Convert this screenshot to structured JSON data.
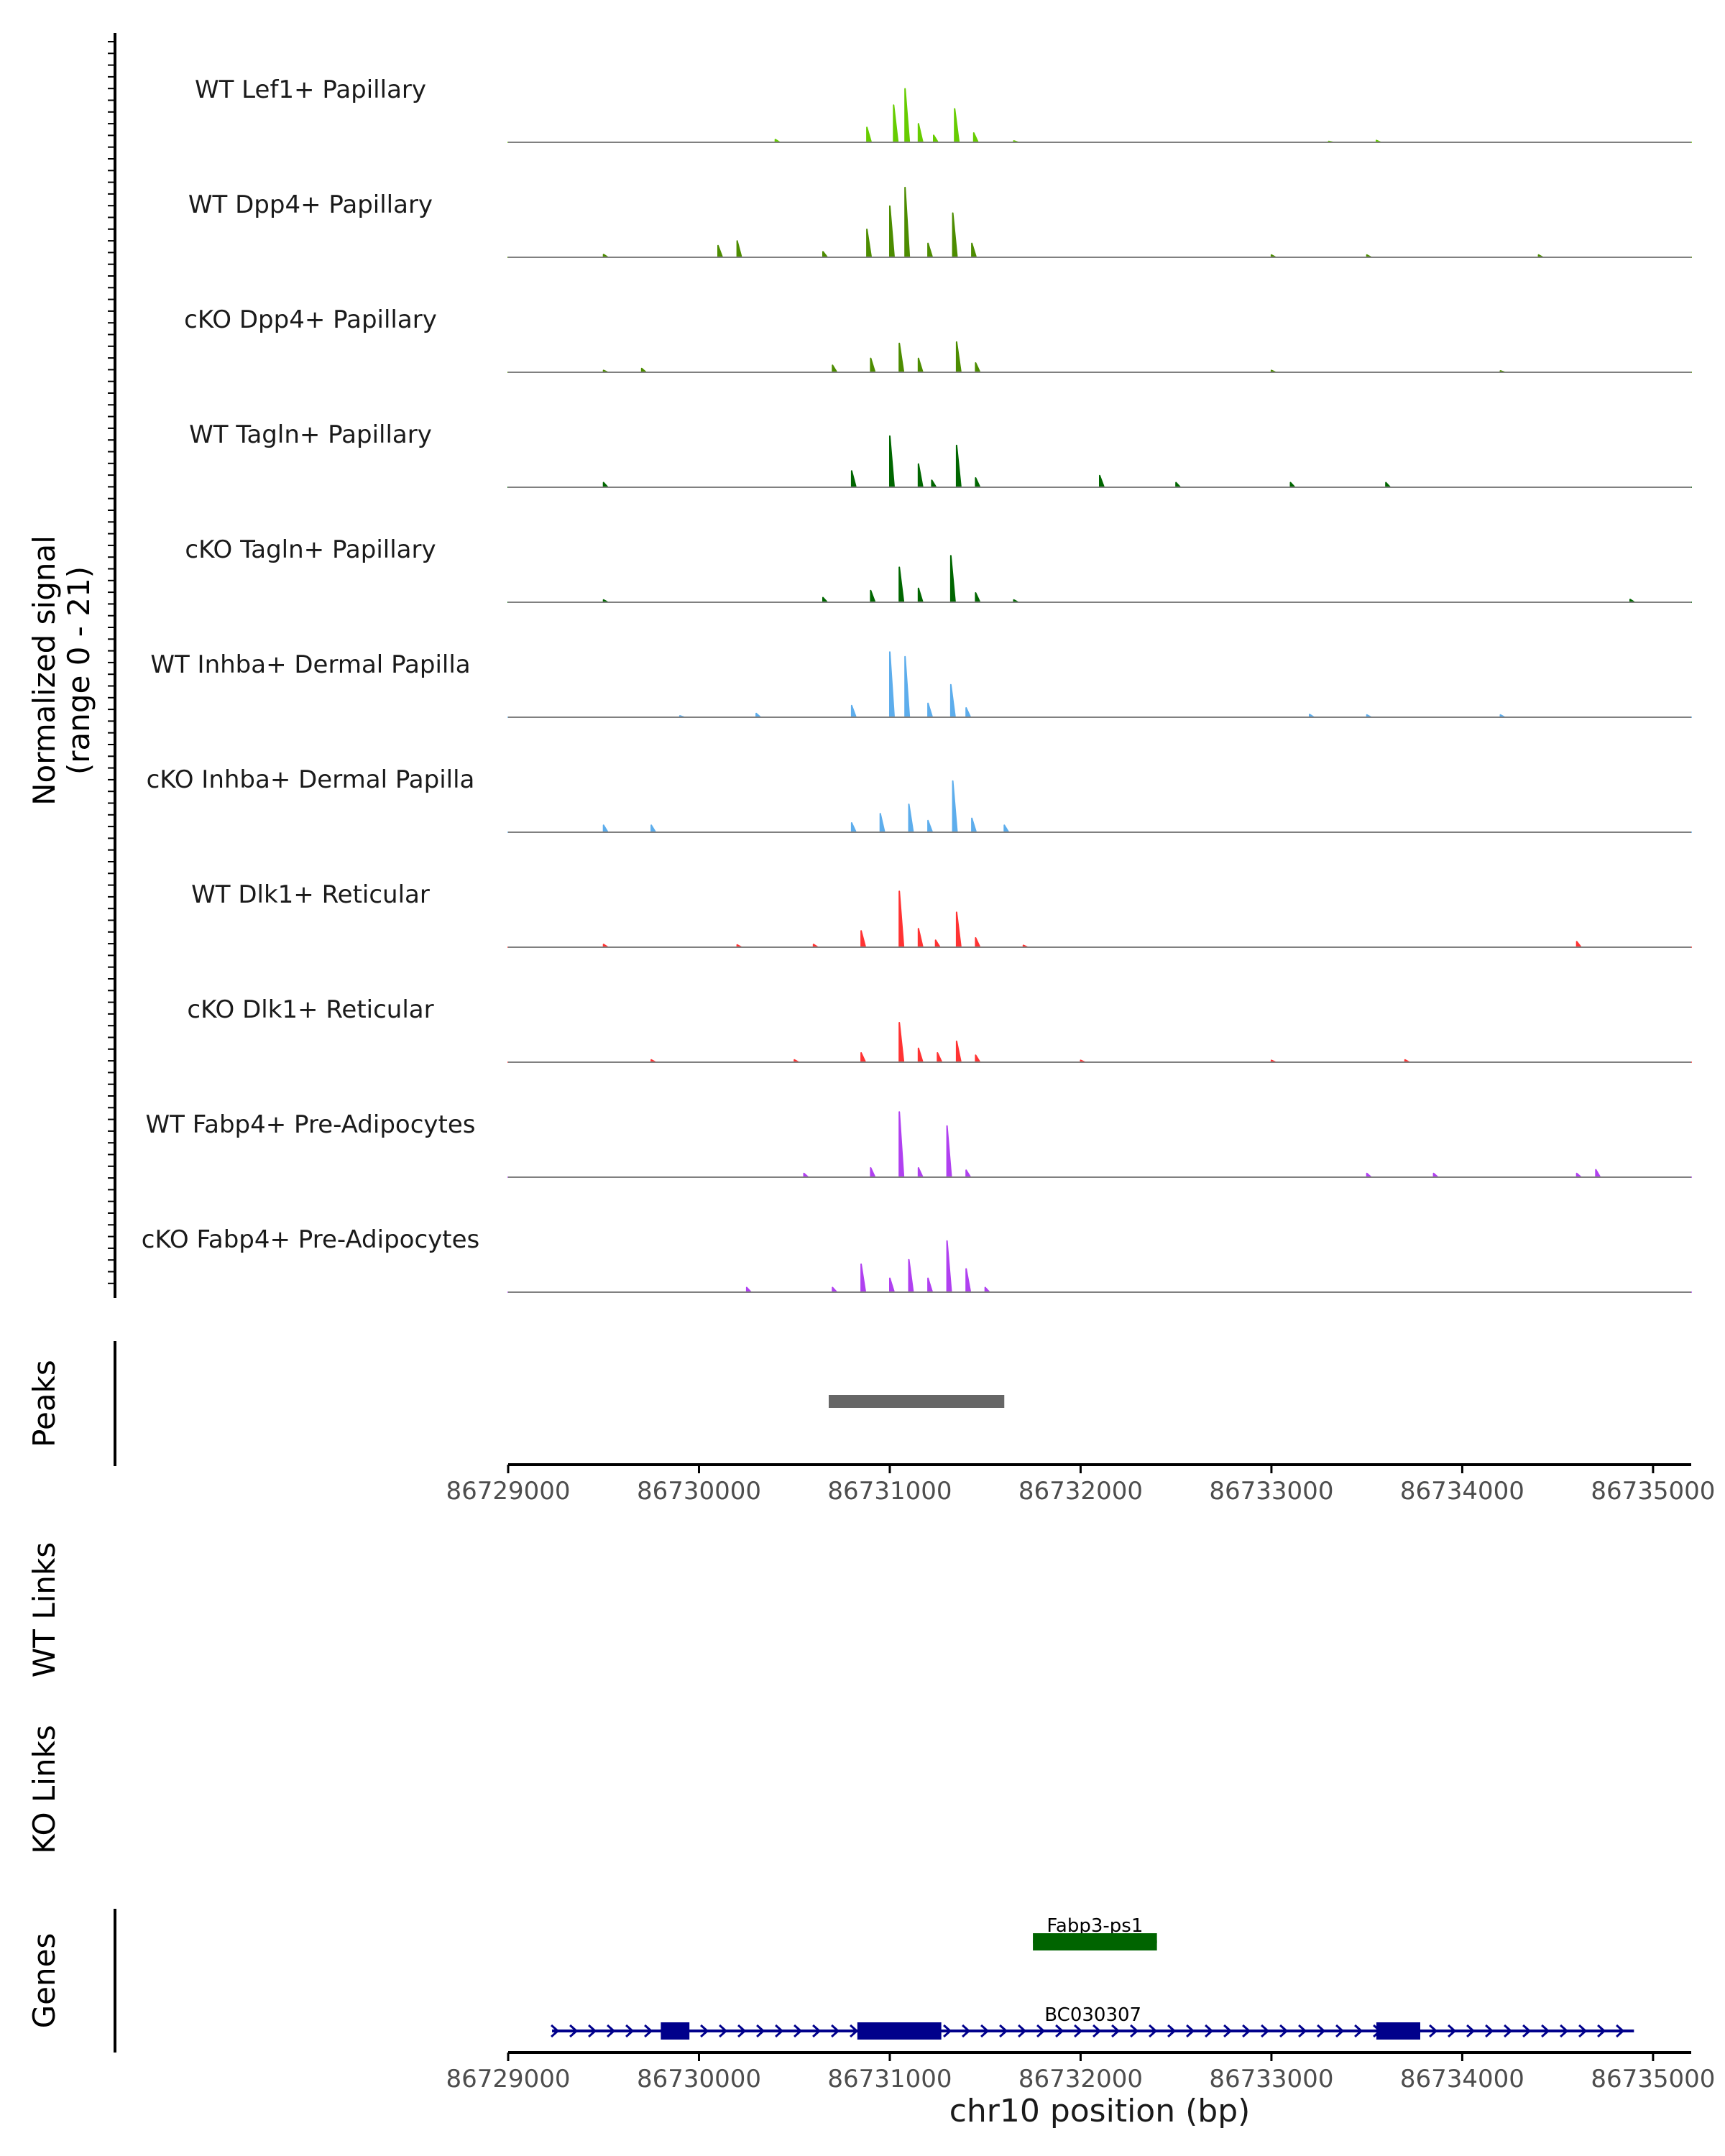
{
  "chart_data": {
    "type": "area",
    "title": "",
    "ylabel_coverage": [
      "Normalized signal",
      "(range 0 - 21)"
    ],
    "ylim": [
      0,
      21
    ],
    "xlim": [
      86729000,
      86735200
    ],
    "xlabel": "chr10 position (bp)",
    "x_ticks": [
      86729000,
      86730000,
      86731000,
      86732000,
      86733000,
      86734000,
      86735000
    ],
    "x_tick_labels": [
      "86729000",
      "86730000",
      "86731000",
      "86732000",
      "86733000",
      "86734000",
      "86735000"
    ],
    "series": [
      {
        "name": "WT Lef1+ Papillary",
        "color": "#66CC00",
        "values": [
          [
            86730000,
            0
          ],
          [
            86730400,
            0.6
          ],
          [
            86730880,
            3.2
          ],
          [
            86731020,
            8
          ],
          [
            86731080,
            11.5
          ],
          [
            86731150,
            4
          ],
          [
            86731230,
            1.5
          ],
          [
            86731340,
            7.2
          ],
          [
            86731440,
            2
          ],
          [
            86731650,
            0.3
          ],
          [
            86733300,
            0.2
          ],
          [
            86733550,
            0.4
          ]
        ]
      },
      {
        "name": "WT Dpp4+ Papillary",
        "color": "#4C8C00",
        "values": [
          [
            86729500,
            0.6
          ],
          [
            86730100,
            1.5
          ],
          [
            86730100,
            2.5
          ],
          [
            86730200,
            3.5
          ],
          [
            86730650,
            1.2
          ],
          [
            86730880,
            6
          ],
          [
            86731000,
            11
          ],
          [
            86731080,
            15
          ],
          [
            86731200,
            3
          ],
          [
            86731330,
            9.5
          ],
          [
            86731430,
            3
          ],
          [
            86733000,
            0.5
          ],
          [
            86733500,
            0.5
          ],
          [
            86734400,
            0.5
          ]
        ]
      },
      {
        "name": "cKO Dpp4+ Papillary",
        "color": "#4C8C00",
        "values": [
          [
            86729500,
            0.4
          ],
          [
            86729700,
            0.8
          ],
          [
            86730700,
            1.5
          ],
          [
            86730900,
            3
          ],
          [
            86731050,
            6.2
          ],
          [
            86731150,
            3
          ],
          [
            86731350,
            6.5
          ],
          [
            86731450,
            2
          ],
          [
            86733000,
            0.4
          ],
          [
            86734200,
            0.3
          ]
        ]
      },
      {
        "name": "WT Tagln+ Papillary",
        "color": "#006600",
        "values": [
          [
            86729500,
            1
          ],
          [
            86730800,
            3.5
          ],
          [
            86731000,
            11
          ],
          [
            86731150,
            5
          ],
          [
            86731220,
            1.5
          ],
          [
            86731350,
            9
          ],
          [
            86731450,
            2
          ],
          [
            86732100,
            2.5
          ],
          [
            86732500,
            1
          ],
          [
            86733100,
            1
          ],
          [
            86733600,
            1
          ]
        ]
      },
      {
        "name": "cKO Tagln+ Papillary",
        "color": "#006600",
        "values": [
          [
            86729500,
            0.5
          ],
          [
            86730650,
            1
          ],
          [
            86730900,
            2.5
          ],
          [
            86731050,
            7.5
          ],
          [
            86731150,
            3
          ],
          [
            86731320,
            10
          ],
          [
            86731450,
            2
          ],
          [
            86731650,
            0.5
          ],
          [
            86734880,
            0.6
          ]
        ]
      },
      {
        "name": "WT Inhba+ Dermal Papilla",
        "color": "#5DADEC",
        "values": [
          [
            86729900,
            0.3
          ],
          [
            86730300,
            0.8
          ],
          [
            86730800,
            2.5
          ],
          [
            86731000,
            14
          ],
          [
            86731080,
            13
          ],
          [
            86731200,
            3
          ],
          [
            86731320,
            7
          ],
          [
            86731400,
            2
          ],
          [
            86733200,
            0.6
          ],
          [
            86733500,
            0.5
          ],
          [
            86734200,
            0.5
          ]
        ]
      },
      {
        "name": "cKO Inhba+ Dermal Papilla",
        "color": "#5DADEC",
        "values": [
          [
            86729500,
            1.5
          ],
          [
            86729750,
            1.5
          ],
          [
            86730800,
            2
          ],
          [
            86730950,
            4
          ],
          [
            86731100,
            6
          ],
          [
            86731200,
            2.5
          ],
          [
            86731330,
            11
          ],
          [
            86731430,
            3
          ],
          [
            86731600,
            1.5
          ]
        ]
      },
      {
        "name": "WT Dlk1+ Reticular",
        "color": "#FF3333",
        "values": [
          [
            86729500,
            0.6
          ],
          [
            86730200,
            0.5
          ],
          [
            86730600,
            0.6
          ],
          [
            86730850,
            3.5
          ],
          [
            86731050,
            12
          ],
          [
            86731150,
            4
          ],
          [
            86731240,
            1.5
          ],
          [
            86731350,
            7.5
          ],
          [
            86731450,
            2
          ],
          [
            86731700,
            0.4
          ],
          [
            86734600,
            1.2
          ]
        ]
      },
      {
        "name": "cKO Dlk1+ Reticular",
        "color": "#FF3333",
        "values": [
          [
            86729750,
            0.5
          ],
          [
            86730500,
            0.5
          ],
          [
            86730850,
            2
          ],
          [
            86731050,
            8.5
          ],
          [
            86731150,
            3
          ],
          [
            86731250,
            2
          ],
          [
            86731350,
            4.5
          ],
          [
            86731450,
            1.5
          ],
          [
            86732000,
            0.4
          ],
          [
            86733000,
            0.4
          ],
          [
            86733700,
            0.5
          ]
        ]
      },
      {
        "name": "WT Fabp4+ Pre-Adipocytes",
        "color": "#B040F0",
        "values": [
          [
            86730550,
            0.8
          ],
          [
            86730900,
            2
          ],
          [
            86731050,
            14
          ],
          [
            86731150,
            2
          ],
          [
            86731300,
            11
          ],
          [
            86731400,
            1.5
          ],
          [
            86733500,
            0.8
          ],
          [
            86733850,
            0.8
          ],
          [
            86734600,
            0.8
          ],
          [
            86734700,
            1.6
          ]
        ]
      },
      {
        "name": "cKO Fabp4+ Pre-Adipocytes",
        "color": "#B040F0",
        "values": [
          [
            86730250,
            1
          ],
          [
            86730700,
            1
          ],
          [
            86730850,
            6
          ],
          [
            86731000,
            3
          ],
          [
            86731100,
            7
          ],
          [
            86731200,
            3
          ],
          [
            86731300,
            11
          ],
          [
            86731400,
            5
          ],
          [
            86731500,
            1
          ]
        ]
      }
    ],
    "peaks": {
      "label": "Peaks",
      "regions": [
        [
          86730680,
          86731600
        ]
      ],
      "color": "#666666"
    },
    "links": [
      {
        "label": "WT Links",
        "items": []
      },
      {
        "label": "KO Links",
        "items": []
      }
    ],
    "genes": {
      "label": "Genes",
      "items": [
        {
          "name": "Fabp3-ps1",
          "start": 86731750,
          "end": 86732400,
          "strand": "+",
          "color": "#006400",
          "exons": [
            [
              86731750,
              86732400
            ]
          ]
        },
        {
          "name": "BC030307",
          "start": 86729230,
          "end": 86734900,
          "strand": "+",
          "color": "#00008B",
          "exons": [
            [
              86729800,
              86729950
            ],
            [
              86730830,
              86731270
            ],
            [
              86733550,
              86733780
            ]
          ]
        }
      ]
    }
  }
}
